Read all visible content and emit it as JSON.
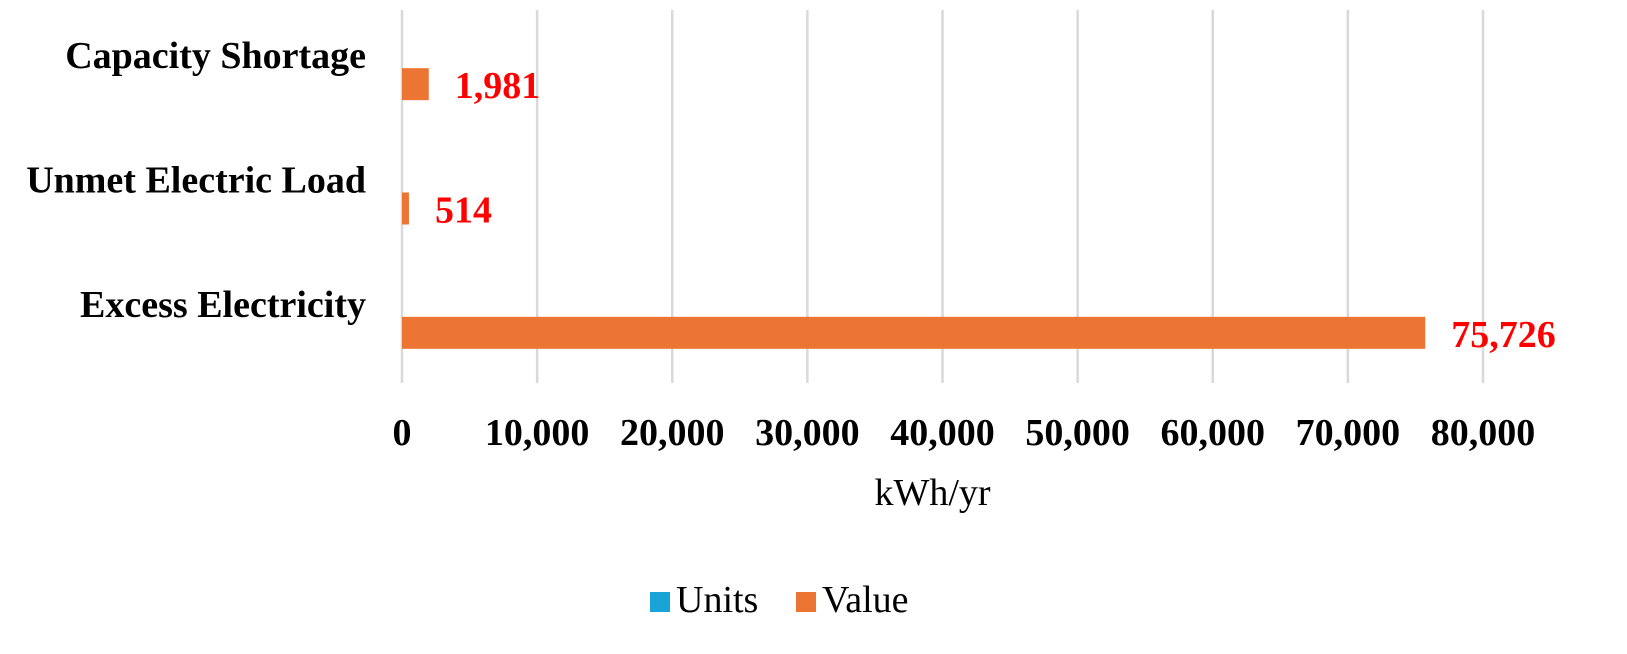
{
  "chart_data": {
    "type": "bar",
    "orientation": "horizontal",
    "categories": [
      "Capacity Shortage",
      "Unmet Electric Load",
      "Excess Electricity"
    ],
    "series": [
      {
        "name": "Units",
        "values": [
          0,
          0,
          0
        ]
      },
      {
        "name": "Value",
        "values": [
          1981,
          514,
          75726
        ]
      }
    ],
    "data_labels": [
      "1,981",
      "514",
      "75,726"
    ],
    "xlabel": "kWh/yr",
    "xlim": [
      0,
      80000
    ],
    "x_ticks": [
      0,
      10000,
      20000,
      30000,
      40000,
      50000,
      60000,
      70000,
      80000
    ],
    "x_tick_labels": [
      "0",
      "10,000",
      "20,000",
      "30,000",
      "40,000",
      "50,000",
      "60,000",
      "70,000",
      "80,000"
    ],
    "grid": true,
    "legend_position": "bottom",
    "colors": {
      "Units": "#1aa3d6",
      "Value": "#ed7533",
      "data_label": "#ff0000",
      "grid": "#d9d9d9"
    }
  }
}
